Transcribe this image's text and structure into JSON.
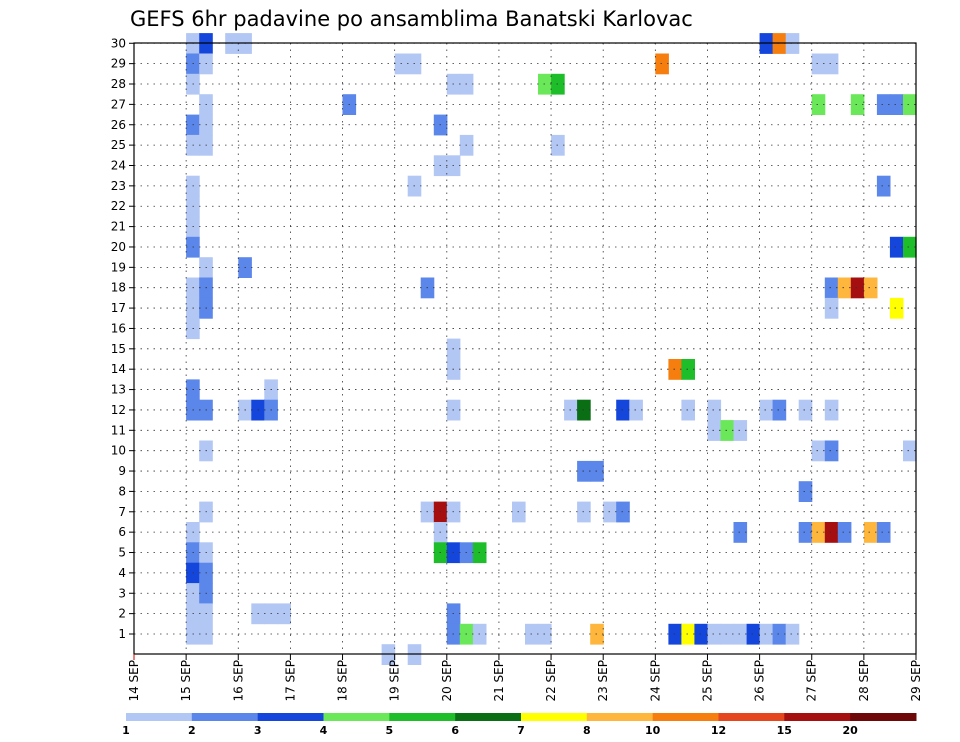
{
  "chart_data": {
    "type": "heatmap",
    "title": "GEFS 6hr padavine po ansamblima Banatski Karlovac",
    "xlabel": "",
    "ylabel": "",
    "x_ticks": [
      "14 SEP",
      "15 SEP",
      "16 SEP",
      "17 SEP",
      "18 SEP",
      "19 SEP",
      "20 SEP",
      "21 SEP",
      "22 SEP",
      "23 SEP",
      "24 SEP",
      "25 SEP",
      "26 SEP",
      "27 SEP",
      "28 SEP",
      "29 SEP"
    ],
    "x_range_days": [
      14,
      29
    ],
    "y_ticks": [
      "1",
      "2",
      "3",
      "4",
      "5",
      "6",
      "7",
      "8",
      "9",
      "10",
      "11",
      "12",
      "13",
      "14",
      "15",
      "16",
      "17",
      "18",
      "19",
      "20",
      "21",
      "22",
      "23",
      "24",
      "25",
      "26",
      "27",
      "28",
      "29",
      "30"
    ],
    "grid": true,
    "legend": {
      "placement": "bottom",
      "labels": [
        "1",
        "2",
        "3",
        "4",
        "5",
        "6",
        "7",
        "8",
        "10",
        "12",
        "15",
        "20"
      ],
      "colors": [
        "#b3c7f5",
        "#5b86ea",
        "#1446dc",
        "#6ae85a",
        "#1ebd2a",
        "#0a6e14",
        "#ffff00",
        "#ffb63c",
        "#f57e0f",
        "#e5461e",
        "#a50f0f",
        "#6e0808"
      ]
    },
    "cells": [
      [
        15.0,
        30,
        1
      ],
      [
        15.25,
        30,
        3
      ],
      [
        15.75,
        30,
        1
      ],
      [
        16.0,
        30,
        1
      ],
      [
        26.0,
        30,
        3
      ],
      [
        26.25,
        30,
        9
      ],
      [
        26.5,
        30,
        1
      ],
      [
        15.0,
        29,
        2
      ],
      [
        15.25,
        29,
        1
      ],
      [
        19.0,
        29,
        1
      ],
      [
        19.25,
        29,
        1
      ],
      [
        24.0,
        29,
        9
      ],
      [
        27.0,
        29,
        1
      ],
      [
        27.25,
        29,
        1
      ],
      [
        15.0,
        28,
        1
      ],
      [
        20.0,
        28,
        1
      ],
      [
        20.25,
        28,
        1
      ],
      [
        21.75,
        28,
        4
      ],
      [
        22.0,
        28,
        5
      ],
      [
        15.25,
        27,
        1
      ],
      [
        18.0,
        27,
        2
      ],
      [
        27.0,
        27,
        4
      ],
      [
        27.75,
        27,
        4
      ],
      [
        28.25,
        27,
        2
      ],
      [
        28.5,
        27,
        2
      ],
      [
        28.75,
        27,
        4
      ],
      [
        15.0,
        26,
        2
      ],
      [
        15.25,
        26,
        1
      ],
      [
        19.75,
        26,
        2
      ],
      [
        15.0,
        25,
        1
      ],
      [
        15.25,
        25,
        1
      ],
      [
        20.25,
        25,
        1
      ],
      [
        22.0,
        25,
        1
      ],
      [
        19.75,
        24,
        1
      ],
      [
        20.0,
        24,
        1
      ],
      [
        15.0,
        23,
        1
      ],
      [
        19.25,
        23,
        1
      ],
      [
        28.25,
        23,
        2
      ],
      [
        15.0,
        22,
        1
      ],
      [
        15.0,
        21,
        1
      ],
      [
        15.0,
        20,
        2
      ],
      [
        28.5,
        20,
        3
      ],
      [
        28.75,
        20,
        5
      ],
      [
        15.25,
        19,
        1
      ],
      [
        16.0,
        19,
        2
      ],
      [
        15.0,
        18,
        1
      ],
      [
        15.25,
        18,
        2
      ],
      [
        19.5,
        18,
        2
      ],
      [
        27.25,
        18,
        2
      ],
      [
        27.5,
        18,
        8
      ],
      [
        27.75,
        18,
        11
      ],
      [
        28.0,
        18,
        8
      ],
      [
        15.0,
        17,
        1
      ],
      [
        15.25,
        17,
        2
      ],
      [
        27.25,
        17,
        1
      ],
      [
        28.5,
        17,
        7
      ],
      [
        15.0,
        16,
        1
      ],
      [
        20.0,
        15,
        1
      ],
      [
        20.0,
        14,
        1
      ],
      [
        24.25,
        14,
        9
      ],
      [
        24.5,
        14,
        5
      ],
      [
        15.0,
        13,
        2
      ],
      [
        16.5,
        13,
        1
      ],
      [
        15.0,
        12,
        2
      ],
      [
        15.25,
        12,
        2
      ],
      [
        16.0,
        12,
        1
      ],
      [
        16.25,
        12,
        3
      ],
      [
        16.5,
        12,
        2
      ],
      [
        20.0,
        12,
        1
      ],
      [
        22.25,
        12,
        1
      ],
      [
        22.5,
        12,
        6
      ],
      [
        23.25,
        12,
        3
      ],
      [
        23.5,
        12,
        1
      ],
      [
        24.5,
        12,
        1
      ],
      [
        25.0,
        12,
        1
      ],
      [
        26.0,
        12,
        1
      ],
      [
        26.25,
        12,
        2
      ],
      [
        26.75,
        12,
        1
      ],
      [
        27.25,
        12,
        1
      ],
      [
        25.0,
        11,
        1
      ],
      [
        25.25,
        11,
        4
      ],
      [
        25.5,
        11,
        1
      ],
      [
        15.25,
        10,
        1
      ],
      [
        27.0,
        10,
        1
      ],
      [
        27.25,
        10,
        2
      ],
      [
        28.75,
        10,
        1
      ],
      [
        22.5,
        9,
        2
      ],
      [
        22.75,
        9,
        2
      ],
      [
        26.75,
        8,
        2
      ],
      [
        15.25,
        7,
        1
      ],
      [
        19.5,
        7,
        1
      ],
      [
        19.75,
        7,
        11
      ],
      [
        20.0,
        7,
        1
      ],
      [
        21.25,
        7,
        1
      ],
      [
        22.5,
        7,
        1
      ],
      [
        23.0,
        7,
        1
      ],
      [
        23.25,
        7,
        2
      ],
      [
        15.0,
        6,
        1
      ],
      [
        19.75,
        6,
        1
      ],
      [
        25.5,
        6,
        2
      ],
      [
        26.75,
        6,
        2
      ],
      [
        27.0,
        6,
        8
      ],
      [
        27.25,
        6,
        11
      ],
      [
        27.5,
        6,
        2
      ],
      [
        28.0,
        6,
        8
      ],
      [
        28.25,
        6,
        2
      ],
      [
        15.0,
        5,
        2
      ],
      [
        15.25,
        5,
        1
      ],
      [
        19.75,
        5,
        5
      ],
      [
        20.0,
        5,
        3
      ],
      [
        20.25,
        5,
        2
      ],
      [
        20.5,
        5,
        5
      ],
      [
        15.0,
        4,
        3
      ],
      [
        15.25,
        4,
        2
      ],
      [
        15.0,
        3,
        1
      ],
      [
        15.25,
        3,
        2
      ],
      [
        15.0,
        2,
        1
      ],
      [
        15.25,
        2,
        1
      ],
      [
        16.25,
        2,
        1
      ],
      [
        16.5,
        2,
        1
      ],
      [
        16.75,
        2,
        1
      ],
      [
        20.0,
        2,
        2
      ],
      [
        15.0,
        1,
        1
      ],
      [
        15.25,
        1,
        1
      ],
      [
        20.0,
        1,
        2
      ],
      [
        20.25,
        1,
        4
      ],
      [
        20.5,
        1,
        1
      ],
      [
        21.5,
        1,
        1
      ],
      [
        21.75,
        1,
        1
      ],
      [
        22.75,
        1,
        8
      ],
      [
        24.25,
        1,
        3
      ],
      [
        24.5,
        1,
        7
      ],
      [
        24.75,
        1,
        3
      ],
      [
        25.0,
        1,
        1
      ],
      [
        25.25,
        1,
        1
      ],
      [
        25.5,
        1,
        1
      ],
      [
        25.75,
        1,
        3
      ],
      [
        26.0,
        1,
        1
      ],
      [
        26.25,
        1,
        2
      ],
      [
        26.5,
        1,
        1
      ],
      [
        18.75,
        0,
        1
      ],
      [
        19.25,
        0,
        1
      ]
    ]
  }
}
